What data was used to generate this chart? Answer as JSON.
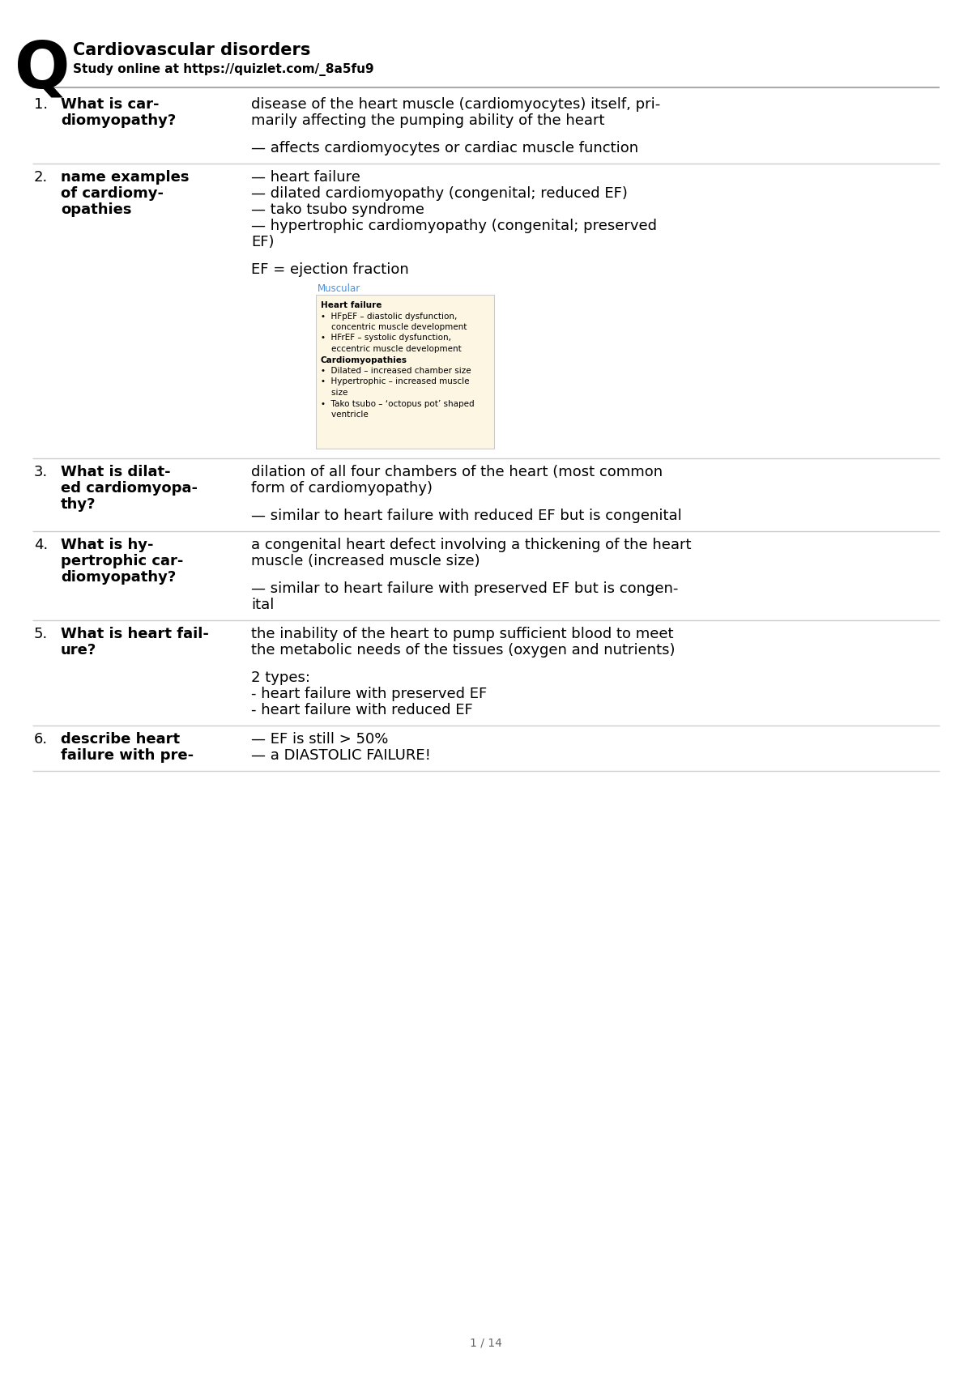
{
  "title": "Cardiovascular disorders",
  "subtitle": "Study online at https://quizlet.com/_8a5fu9",
  "bg_color": "#ffffff",
  "text_color": "#000000",
  "header_line_color": "#cccccc",
  "row_line_color": "#cccccc",
  "entries": [
    {
      "num": "1.",
      "question": "What is car-\ndiomyopathy?",
      "answer": "disease of the heart muscle (cardiomyocytes) itself, pri-\nmarily affecting the pumping ability of the heart\n\n— affects cardiomyocytes or cardiac muscle function"
    },
    {
      "num": "2.",
      "question": "name examples\nof cardiomy-\nopathies",
      "answer": "— heart failure\n— dilated cardiomyopathy (congenital; reduced EF)\n— tako tsubo syndrome\n— hypertrophic cardiomyopathy (congenital; preserved\nEF)\n\nEF = ejection fraction\n[IMAGE]"
    },
    {
      "num": "3.",
      "question": "What is dilat-\ned cardiomyopa-\nthy?",
      "answer": "dilation of all four chambers of the heart (most common\nform of cardiomyopathy)\n\n— similar to heart failure with reduced EF but is congenital"
    },
    {
      "num": "4.",
      "question": "What is hy-\npertrophic car-\ndiomyopathy?",
      "answer": "a congenital heart defect involving a thickening of the heart\nmuscle (increased muscle size)\n\n— similar to heart failure with preserved EF but is congen-\nital"
    },
    {
      "num": "5.",
      "question": "What is heart fail-\nure?",
      "answer": "the inability of the heart to pump sufficient blood to meet\nthe metabolic needs of the tissues (oxygen and nutrients)\n\n2 types:\n- heart failure with preserved EF\n- heart failure with reduced EF"
    },
    {
      "num": "6.",
      "question": "describe heart\nfailure with pre-",
      "answer": "— EF is still > 50%\n— a DIASTOLIC FAILURE!"
    }
  ],
  "page_label": "1 / 14",
  "inset_title": "Muscular",
  "inset_title_color": "#4a90d9",
  "inset_bg": "#fdf6e3",
  "inset_border": "#cccccc",
  "inset_content": [
    {
      "bold": true,
      "bullet": false,
      "text": "Heart failure"
    },
    {
      "bold": false,
      "bullet": true,
      "text": "HFpEF – diastolic dysfunction,\nconcentric muscle development"
    },
    {
      "bold": false,
      "bullet": true,
      "text": "HFrEF – systolic dysfunction,\neccentric muscle development"
    },
    {
      "bold": true,
      "bullet": false,
      "text": "Cardiomyopathies"
    },
    {
      "bold": false,
      "bullet": true,
      "text": "Dilated – increased chamber size"
    },
    {
      "bold": false,
      "bullet": true,
      "text": "Hypertrophic – increased muscle\nsize"
    },
    {
      "bold": false,
      "bullet": true,
      "text": "Tako tsubo – ‘octopus pot’ shaped\nventricle"
    }
  ]
}
